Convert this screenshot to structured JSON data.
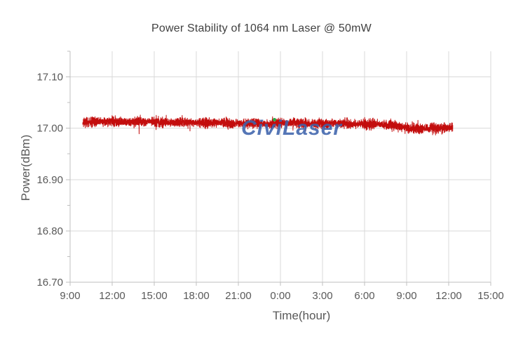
{
  "chart_data": {
    "type": "line",
    "title": "Power Stability of 1064 nm Laser @ 50mW",
    "xlabel": "Time(hour)",
    "ylabel": "Power(dBm)",
    "x_tick_labels": [
      "9:00",
      "12:00",
      "15:00",
      "18:00",
      "21:00",
      "0:00",
      "3:00",
      "6:00",
      "9:00",
      "12:00",
      "15:00"
    ],
    "x_tick_hours": [
      9,
      12,
      15,
      18,
      21,
      24,
      27,
      30,
      33,
      36,
      39
    ],
    "xlim_hours": [
      9,
      39
    ],
    "y_tick_labels": [
      "16.70",
      "16.80",
      "16.90",
      "17.00",
      "17.10"
    ],
    "y_tick_values": [
      16.7,
      16.8,
      16.9,
      17.0,
      17.1
    ],
    "y_minor_step": 0.05,
    "ylim": [
      16.7,
      17.15
    ],
    "grid": true,
    "legend": "none",
    "series": [
      {
        "name": "Power (dBm)",
        "color": "#C00000",
        "start_hour": 9.9,
        "end_hour": 36.3,
        "points_per_hour": 60,
        "mean_profile_hours": [
          9.9,
          11,
          12,
          13,
          14,
          15,
          16,
          17,
          18,
          19,
          20,
          21,
          22,
          23,
          24,
          25,
          26,
          27,
          28,
          29,
          30,
          31,
          32,
          33,
          33.5,
          34,
          35,
          36,
          36.3
        ],
        "mean_profile_dbm": [
          17.011,
          17.013,
          17.014,
          17.012,
          17.013,
          17.013,
          17.011,
          17.012,
          17.011,
          17.01,
          17.011,
          17.009,
          17.01,
          17.008,
          17.01,
          17.011,
          17.009,
          17.009,
          17.01,
          17.008,
          17.008,
          17.008,
          17.006,
          17.001,
          16.999,
          16.999,
          17.0,
          17.001,
          17.002
        ],
        "noise_typical_pp_dbm": 0.016,
        "noise_peak_dbm": 0.03
      }
    ],
    "colors": {
      "grid": "#D9D9D9",
      "axis": "#BFBFBF",
      "tick_text": "#595959",
      "title_text": "#404040"
    }
  },
  "watermark": {
    "text": "CiviLaser",
    "color": "#3E64AC",
    "accent_dot_color": "#2FA848"
  }
}
